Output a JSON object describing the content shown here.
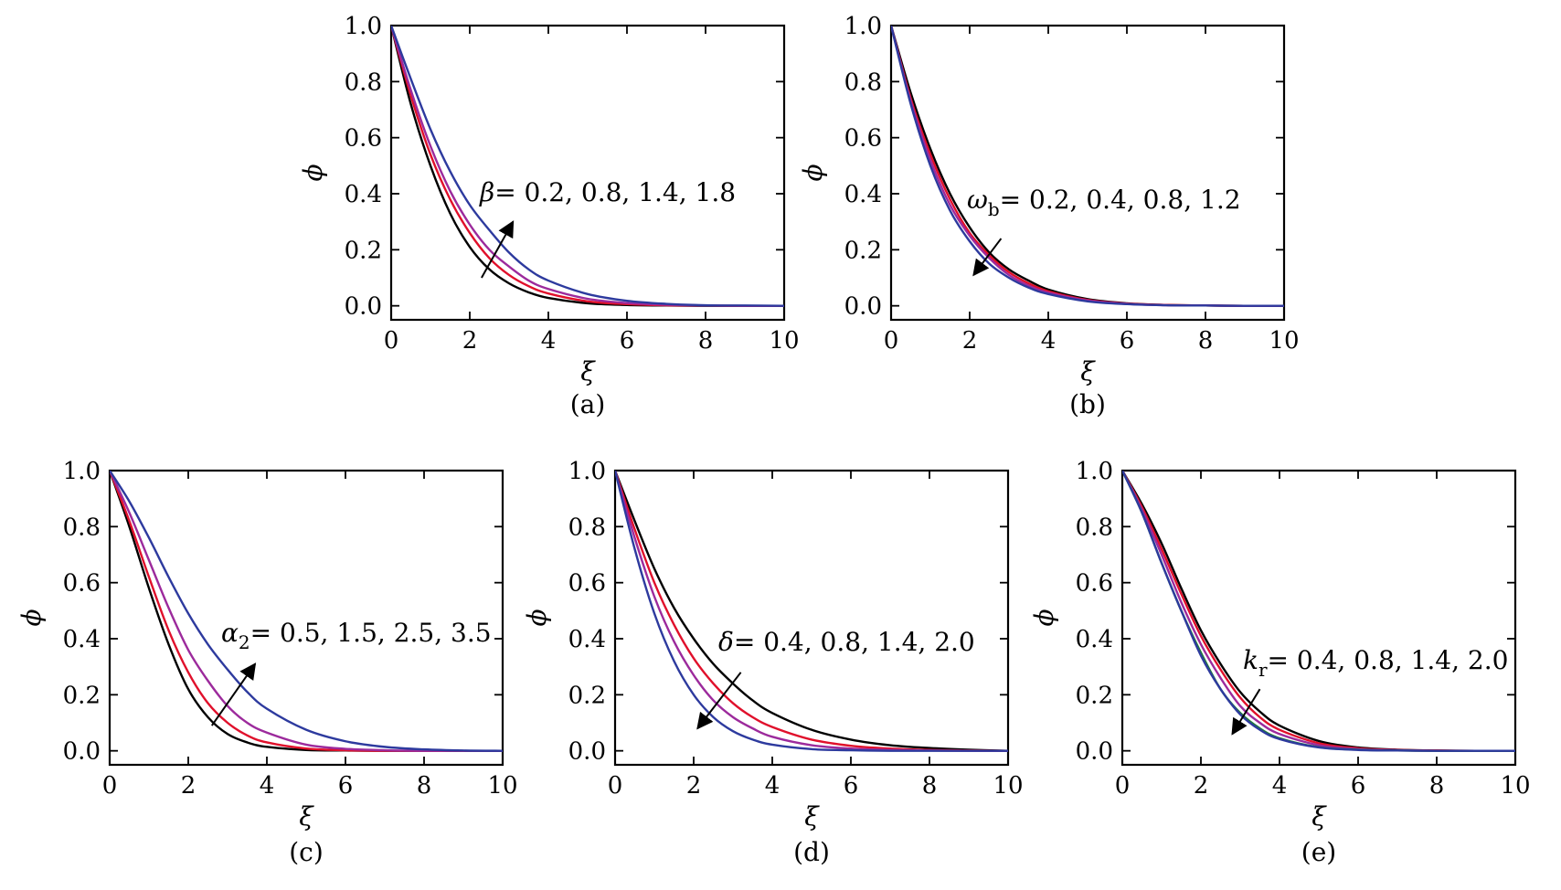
{
  "figure": {
    "series_colors": [
      "#000000",
      "#e0102b",
      "#9c2a9c",
      "#2d3a9e"
    ],
    "kr_extra_color": "#1f7a3a"
  },
  "chart_data": [
    {
      "id": "a",
      "type": "line",
      "panel_label": "(a)",
      "xlabel": "ξ",
      "ylabel": "ϕ",
      "xlim": [
        0,
        10
      ],
      "ylim": [
        -0.05,
        1.0
      ],
      "xticks": [
        0,
        2,
        4,
        6,
        8,
        10
      ],
      "yticks": [
        0.0,
        0.2,
        0.4,
        0.6,
        0.8,
        1.0
      ],
      "xtick_labels": [
        "0",
        "2",
        "4",
        "6",
        "8",
        "10"
      ],
      "ytick_labels": [
        "0.0",
        "0.2",
        "0.4",
        "0.6",
        "0.8",
        "1.0"
      ],
      "annotation": {
        "symbol": "β",
        "subscript": "",
        "values_text": "= 0.2, 0.8, 1.4, 1.8"
      },
      "arrow": {
        "from": [
          2.3,
          0.1
        ],
        "to": [
          3.1,
          0.3
        ]
      },
      "x": [
        0,
        0.5,
        1,
        1.5,
        2,
        2.5,
        3,
        3.5,
        4,
        5,
        6,
        7,
        8,
        9,
        10
      ],
      "series": [
        {
          "color": "#000000",
          "values": [
            1.0,
            0.72,
            0.5,
            0.33,
            0.21,
            0.13,
            0.08,
            0.048,
            0.028,
            0.009,
            0.003,
            0.001,
            0.0,
            0.0,
            0.0
          ]
        },
        {
          "color": "#e0102b",
          "values": [
            1.0,
            0.75,
            0.54,
            0.38,
            0.26,
            0.17,
            0.11,
            0.07,
            0.044,
            0.016,
            0.006,
            0.002,
            0.001,
            0.0,
            0.0
          ]
        },
        {
          "color": "#9c2a9c",
          "values": [
            1.0,
            0.77,
            0.57,
            0.41,
            0.29,
            0.2,
            0.14,
            0.09,
            0.06,
            0.025,
            0.01,
            0.004,
            0.001,
            0.0,
            0.0
          ]
        },
        {
          "color": "#2d3a9e",
          "values": [
            1.0,
            0.81,
            0.63,
            0.48,
            0.36,
            0.27,
            0.19,
            0.13,
            0.09,
            0.042,
            0.018,
            0.007,
            0.002,
            0.001,
            0.0
          ]
        }
      ]
    },
    {
      "id": "b",
      "type": "line",
      "panel_label": "(b)",
      "xlabel": "ξ",
      "ylabel": "ϕ",
      "xlim": [
        0,
        10
      ],
      "ylim": [
        -0.05,
        1.0
      ],
      "xticks": [
        0,
        2,
        4,
        6,
        8,
        10
      ],
      "yticks": [
        0.0,
        0.2,
        0.4,
        0.6,
        0.8,
        1.0
      ],
      "xtick_labels": [
        "0",
        "2",
        "4",
        "6",
        "8",
        "10"
      ],
      "ytick_labels": [
        "0.0",
        "0.2",
        "0.4",
        "0.6",
        "0.8",
        "1.0"
      ],
      "annotation": {
        "symbol": "ω",
        "subscript": "b",
        "values_text": "= 0.2, 0.4, 0.8, 1.2"
      },
      "arrow": {
        "from": [
          2.8,
          0.24
        ],
        "to": [
          2.1,
          0.11
        ]
      },
      "x": [
        0,
        0.5,
        1,
        1.5,
        2,
        2.5,
        3,
        3.5,
        4,
        5,
        6,
        7,
        8,
        9,
        10
      ],
      "series": [
        {
          "color": "#000000",
          "values": [
            1.0,
            0.76,
            0.56,
            0.4,
            0.28,
            0.19,
            0.13,
            0.09,
            0.058,
            0.024,
            0.009,
            0.003,
            0.001,
            0.0,
            0.0
          ]
        },
        {
          "color": "#e0102b",
          "values": [
            1.0,
            0.74,
            0.54,
            0.38,
            0.26,
            0.18,
            0.12,
            0.08,
            0.052,
            0.021,
            0.008,
            0.003,
            0.001,
            0.0,
            0.0
          ]
        },
        {
          "color": "#9c2a9c",
          "values": [
            1.0,
            0.73,
            0.52,
            0.36,
            0.25,
            0.17,
            0.11,
            0.072,
            0.047,
            0.019,
            0.007,
            0.002,
            0.001,
            0.0,
            0.0
          ]
        },
        {
          "color": "#2d3a9e",
          "values": [
            1.0,
            0.72,
            0.5,
            0.34,
            0.23,
            0.15,
            0.1,
            0.065,
            0.042,
            0.016,
            0.006,
            0.002,
            0.001,
            0.0,
            0.0
          ]
        }
      ]
    },
    {
      "id": "c",
      "type": "line",
      "panel_label": "(c)",
      "xlabel": "ξ",
      "ylabel": "ϕ",
      "xlim": [
        0,
        10
      ],
      "ylim": [
        -0.05,
        1.0
      ],
      "xticks": [
        0,
        2,
        4,
        6,
        8,
        10
      ],
      "yticks": [
        0.0,
        0.2,
        0.4,
        0.6,
        0.8,
        1.0
      ],
      "xtick_labels": [
        "0",
        "2",
        "4",
        "6",
        "8",
        "10"
      ],
      "ytick_labels": [
        "0.0",
        "0.2",
        "0.4",
        "0.6",
        "0.8",
        "1.0"
      ],
      "annotation": {
        "symbol": "α",
        "subscript": "2",
        "values_text": "= 0.5, 1.5, 2.5, 3.5"
      },
      "arrow": {
        "from": [
          2.6,
          0.09
        ],
        "to": [
          3.7,
          0.31
        ]
      },
      "x": [
        0,
        0.5,
        1,
        1.5,
        2,
        2.5,
        3,
        3.5,
        4,
        5,
        6,
        7,
        8,
        9,
        10
      ],
      "series": [
        {
          "color": "#000000",
          "values": [
            1.0,
            0.8,
            0.58,
            0.38,
            0.22,
            0.12,
            0.06,
            0.03,
            0.014,
            0.003,
            0.001,
            0.0,
            0.0,
            0.0,
            0.0
          ]
        },
        {
          "color": "#e0102b",
          "values": [
            1.0,
            0.82,
            0.62,
            0.43,
            0.28,
            0.17,
            0.1,
            0.055,
            0.03,
            0.008,
            0.002,
            0.0,
            0.0,
            0.0,
            0.0
          ]
        },
        {
          "color": "#9c2a9c",
          "values": [
            1.0,
            0.85,
            0.68,
            0.51,
            0.36,
            0.25,
            0.16,
            0.1,
            0.065,
            0.022,
            0.007,
            0.002,
            0.0,
            0.0,
            0.0
          ]
        },
        {
          "color": "#2d3a9e",
          "values": [
            1.0,
            0.89,
            0.76,
            0.62,
            0.49,
            0.38,
            0.29,
            0.21,
            0.15,
            0.075,
            0.034,
            0.014,
            0.005,
            0.001,
            0.0
          ]
        }
      ]
    },
    {
      "id": "d",
      "type": "line",
      "panel_label": "(d)",
      "xlabel": "ξ",
      "ylabel": "ϕ",
      "xlim": [
        0,
        10
      ],
      "ylim": [
        -0.05,
        1.0
      ],
      "xticks": [
        0,
        2,
        4,
        6,
        8,
        10
      ],
      "yticks": [
        0.0,
        0.2,
        0.4,
        0.6,
        0.8,
        1.0
      ],
      "xtick_labels": [
        "0",
        "2",
        "4",
        "6",
        "8",
        "10"
      ],
      "ytick_labels": [
        "0.0",
        "0.2",
        "0.4",
        "0.6",
        "0.8",
        "1.0"
      ],
      "annotation": {
        "symbol": "δ",
        "subscript": "",
        "values_text": "= 0.4, 0.8, 1.4, 2.0"
      },
      "arrow": {
        "from": [
          3.2,
          0.28
        ],
        "to": [
          2.1,
          0.08
        ]
      },
      "x": [
        0,
        0.5,
        1,
        1.5,
        2,
        2.5,
        3,
        3.5,
        4,
        5,
        6,
        7,
        8,
        9,
        10
      ],
      "series": [
        {
          "color": "#000000",
          "values": [
            1.0,
            0.82,
            0.65,
            0.51,
            0.4,
            0.31,
            0.24,
            0.18,
            0.135,
            0.075,
            0.04,
            0.02,
            0.01,
            0.004,
            0.0
          ]
        },
        {
          "color": "#e0102b",
          "values": [
            1.0,
            0.79,
            0.6,
            0.45,
            0.33,
            0.24,
            0.17,
            0.12,
            0.085,
            0.04,
            0.018,
            0.008,
            0.003,
            0.001,
            0.0
          ]
        },
        {
          "color": "#9c2a9c",
          "values": [
            1.0,
            0.76,
            0.55,
            0.39,
            0.27,
            0.18,
            0.12,
            0.08,
            0.05,
            0.02,
            0.008,
            0.003,
            0.001,
            0.0,
            0.0
          ]
        },
        {
          "color": "#2d3a9e",
          "values": [
            1.0,
            0.72,
            0.49,
            0.32,
            0.2,
            0.12,
            0.07,
            0.04,
            0.022,
            0.006,
            0.002,
            0.0,
            0.0,
            0.0,
            0.0
          ]
        }
      ]
    },
    {
      "id": "e",
      "type": "line",
      "panel_label": "(e)",
      "xlabel": "ξ",
      "ylabel": "ϕ",
      "xlim": [
        0,
        10
      ],
      "ylim": [
        -0.05,
        1.0
      ],
      "xticks": [
        0,
        2,
        4,
        6,
        8,
        10
      ],
      "yticks": [
        0.0,
        0.2,
        0.4,
        0.6,
        0.8,
        1.0
      ],
      "xtick_labels": [
        "0",
        "2",
        "4",
        "6",
        "8",
        "10"
      ],
      "ytick_labels": [
        "0.0",
        "0.2",
        "0.4",
        "0.6",
        "0.8",
        "1.0"
      ],
      "annotation": {
        "symbol": "k",
        "subscript": "r",
        "values_text": "= 0.4, 0.8, 1.4, 2.0"
      },
      "arrow": {
        "from": [
          3.5,
          0.22
        ],
        "to": [
          2.8,
          0.06
        ]
      },
      "x": [
        0,
        0.5,
        1,
        1.5,
        2,
        2.5,
        3,
        3.5,
        4,
        5,
        6,
        7,
        8,
        9,
        10
      ],
      "series": [
        {
          "color": "#000000",
          "values": [
            1.0,
            0.88,
            0.74,
            0.58,
            0.43,
            0.31,
            0.21,
            0.14,
            0.09,
            0.035,
            0.012,
            0.004,
            0.001,
            0.0,
            0.0
          ]
        },
        {
          "color": "#e0102b",
          "values": [
            1.0,
            0.87,
            0.72,
            0.56,
            0.41,
            0.29,
            0.19,
            0.12,
            0.075,
            0.027,
            0.009,
            0.003,
            0.001,
            0.0,
            0.0
          ]
        },
        {
          "color": "#9c2a9c",
          "values": [
            1.0,
            0.86,
            0.7,
            0.53,
            0.38,
            0.26,
            0.16,
            0.1,
            0.06,
            0.02,
            0.006,
            0.002,
            0.0,
            0.0,
            0.0
          ]
        },
        {
          "color": "#1f7a3a",
          "values": [
            1.0,
            0.85,
            0.67,
            0.5,
            0.35,
            0.22,
            0.135,
            0.08,
            0.045,
            0.013,
            0.004,
            0.001,
            0.0,
            0.0,
            0.0
          ]
        },
        {
          "color": "#2d3a9e",
          "values": [
            1.0,
            0.85,
            0.67,
            0.5,
            0.34,
            0.22,
            0.13,
            0.075,
            0.042,
            0.012,
            0.003,
            0.001,
            0.0,
            0.0,
            0.0
          ]
        }
      ]
    }
  ]
}
